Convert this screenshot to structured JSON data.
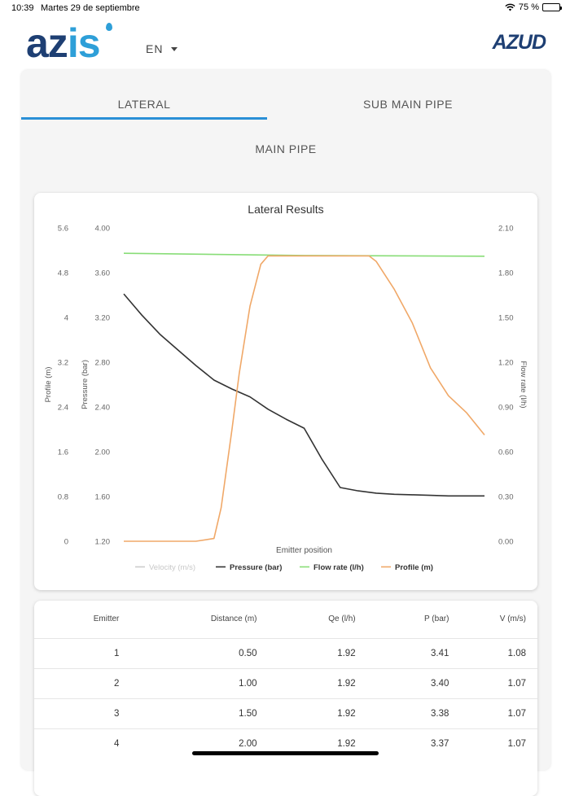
{
  "status_bar": {
    "time": "10:39",
    "date": "Martes 29 de septiembre",
    "battery": "75 %",
    "battery_level": 0.75
  },
  "header": {
    "logo_left_a": "az",
    "logo_left_b": "is",
    "language": "EN",
    "logo_right": "AZUD"
  },
  "tabs": [
    {
      "label": "LATERAL",
      "active": true
    },
    {
      "label": "SUB MAIN PIPE",
      "active": false
    },
    {
      "label": "MAIN PIPE",
      "active": false
    }
  ],
  "chart_data": {
    "type": "line",
    "title": "Lateral Results",
    "xlabel": "Emitter position",
    "ylabel_profile": "Profile (m)",
    "ylabel_pressure": "Pressure (bar)",
    "ylabel_flow": "Flow rate (l/h)",
    "profile_ticks": [
      "5.6",
      "4.8",
      "4",
      "3.2",
      "2.4",
      "1.6",
      "0.8",
      "0"
    ],
    "pressure_ticks": [
      "4.00",
      "3.60",
      "3.20",
      "2.80",
      "2.40",
      "2.00",
      "1.60",
      "1.20"
    ],
    "flow_ticks": [
      "2.10",
      "1.80",
      "1.50",
      "1.20",
      "0.90",
      "0.60",
      "0.30",
      "0.00"
    ],
    "profile_range": [
      0,
      5.6
    ],
    "pressure_range": [
      1.2,
      4.0
    ],
    "flow_range": [
      0,
      2.1
    ],
    "x_range": [
      0,
      100
    ],
    "legend": [
      "Velocity (m/s)",
      "Pressure (bar)",
      "Flow rate (l/h)",
      "Profile (m)"
    ],
    "colors": {
      "velocity": "#cccccc",
      "pressure": "#333333",
      "flow": "#88dd77",
      "profile": "#f0a868"
    },
    "series": [
      {
        "name": "Pressure (bar)",
        "points": [
          [
            0,
            3.41
          ],
          [
            5,
            3.22
          ],
          [
            10,
            3.05
          ],
          [
            15,
            2.91
          ],
          [
            20,
            2.77
          ],
          [
            25,
            2.64
          ],
          [
            30,
            2.56
          ],
          [
            35,
            2.49
          ],
          [
            40,
            2.38
          ],
          [
            45,
            2.29
          ],
          [
            50,
            2.21
          ],
          [
            55,
            1.93
          ],
          [
            60,
            1.68
          ],
          [
            65,
            1.65
          ],
          [
            70,
            1.63
          ],
          [
            75,
            1.62
          ],
          [
            80,
            1.615
          ],
          [
            85,
            1.61
          ],
          [
            90,
            1.605
          ],
          [
            100,
            1.605
          ]
        ]
      },
      {
        "name": "Flow rate (l/h)",
        "points": [
          [
            0,
            1.93
          ],
          [
            50,
            1.915
          ],
          [
            100,
            1.91
          ]
        ]
      },
      {
        "name": "Profile (m)",
        "points": [
          [
            0,
            0
          ],
          [
            10,
            0
          ],
          [
            20,
            0
          ],
          [
            25,
            0.05
          ],
          [
            27,
            0.6
          ],
          [
            30,
            2.0
          ],
          [
            32,
            3.0
          ],
          [
            35,
            4.2
          ],
          [
            38,
            4.95
          ],
          [
            40,
            5.1
          ],
          [
            50,
            5.1
          ],
          [
            60,
            5.1
          ],
          [
            68,
            5.1
          ],
          [
            70,
            5.0
          ],
          [
            75,
            4.5
          ],
          [
            80,
            3.9
          ],
          [
            85,
            3.1
          ],
          [
            90,
            2.6
          ],
          [
            95,
            2.3
          ],
          [
            100,
            1.9
          ]
        ]
      }
    ]
  },
  "table": {
    "headers": [
      "Emitter",
      "Distance (m)",
      "Qe (l/h)",
      "P (bar)",
      "V (m/s)"
    ],
    "rows": [
      [
        "1",
        "0.50",
        "1.92",
        "3.41",
        "1.08"
      ],
      [
        "2",
        "1.00",
        "1.92",
        "3.40",
        "1.07"
      ],
      [
        "3",
        "1.50",
        "1.92",
        "3.38",
        "1.07"
      ],
      [
        "4",
        "2.00",
        "1.92",
        "3.37",
        "1.07"
      ]
    ]
  }
}
